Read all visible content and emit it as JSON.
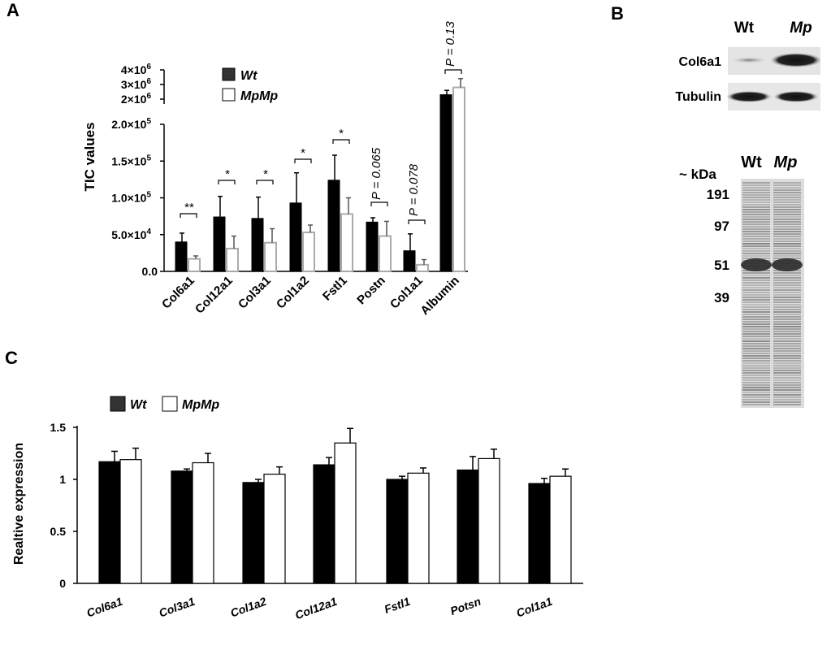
{
  "panels": {
    "a": "A",
    "b": "B",
    "c": "C"
  },
  "chart_data": [
    {
      "type": "bar",
      "panel": "A",
      "ylabel": "TIC values",
      "yticks_lower": [
        "0.0",
        "5.0×10",
        "1.0×10",
        "1.5×10",
        "2.0×10"
      ],
      "ytick_exponents_lower": [
        "",
        "4",
        "5",
        "5",
        "5"
      ],
      "yticks_upper": [
        "2×10",
        "3×10",
        "4×10"
      ],
      "ytick_exponents_upper": [
        "6",
        "6",
        "6"
      ],
      "ylim_lower": [
        0,
        200000
      ],
      "ylim_upper": [
        2000000,
        4000000
      ],
      "categories": [
        "Col6a1",
        "Col12a1",
        "Col3a1",
        "Col1a2",
        "Fstl1",
        "Postn",
        "Col1a1",
        "Albumin"
      ],
      "series": [
        {
          "name": "Wt",
          "color": "#000000",
          "values": [
            40000,
            74000,
            72000,
            93000,
            124000,
            67000,
            28000,
            2300000
          ],
          "errors": [
            12000,
            28000,
            29000,
            41000,
            34000,
            6000,
            23000,
            300000
          ]
        },
        {
          "name": "MpMp",
          "color": "#ffffff",
          "values": [
            17000,
            31000,
            39000,
            53000,
            78000,
            48000,
            9000,
            2800000
          ],
          "errors": [
            4000,
            17000,
            19000,
            10000,
            22000,
            20000,
            7000,
            600000
          ]
        }
      ],
      "annotations": [
        "**",
        "*",
        "*",
        "*",
        "*",
        "P = 0.065",
        "P = 0.078",
        "P = 0.13"
      ]
    },
    {
      "type": "bar",
      "panel": "C",
      "ylabel": "Realtive expression",
      "yticks": [
        "0",
        "0.5",
        "1",
        "1.5"
      ],
      "ylim": [
        0,
        1.5
      ],
      "categories": [
        "Col6a1",
        "Col3a1",
        "Col1a2",
        "Col12a1",
        "Fstl1",
        "Potsn",
        "Col1a1"
      ],
      "series": [
        {
          "name": "Wt",
          "color": "#000000",
          "values": [
            1.17,
            1.08,
            0.97,
            1.14,
            1.0,
            1.09,
            0.96
          ],
          "errors": [
            0.1,
            0.02,
            0.03,
            0.07,
            0.03,
            0.13,
            0.05
          ]
        },
        {
          "name": "MpMp",
          "color": "#ffffff",
          "values": [
            1.19,
            1.16,
            1.05,
            1.35,
            1.06,
            1.2,
            1.03
          ],
          "errors": [
            0.11,
            0.09,
            0.07,
            0.14,
            0.05,
            0.09,
            0.07
          ]
        }
      ]
    }
  ],
  "western": {
    "lanes": [
      "Wt",
      "Mp"
    ],
    "rows": [
      "Col6a1",
      "Tubulin"
    ]
  },
  "gel": {
    "lanes": [
      "Wt",
      "Mp"
    ],
    "unit": "~ kDa",
    "markers": [
      "191",
      "97",
      "51",
      "39"
    ]
  }
}
